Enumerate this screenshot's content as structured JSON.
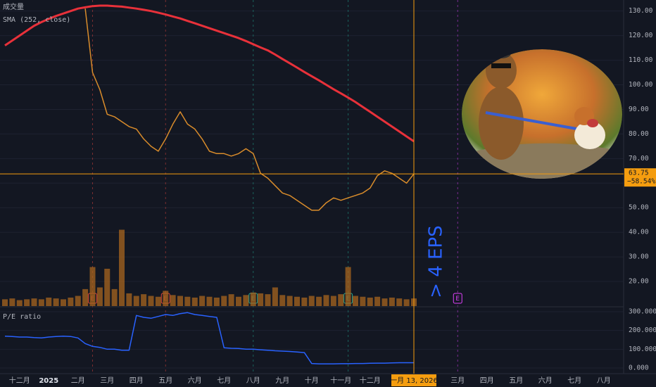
{
  "chart_data": [
    {
      "type": "line",
      "categories": [
        null,
        null,
        "十二月",
        null,
        null,
        null,
        "2025",
        null,
        null,
        null,
        "二月",
        null,
        null,
        null,
        "三月",
        null,
        null,
        null,
        "四月",
        null,
        null,
        null,
        "五月",
        null,
        null,
        null,
        "六月",
        null,
        null,
        null,
        "七月",
        null,
        null,
        null,
        "八月",
        null,
        null,
        null,
        "九月",
        null,
        null,
        null,
        "十月",
        null,
        null,
        null,
        "十一月",
        null,
        null,
        null,
        "十二月",
        null,
        null,
        null,
        null,
        null,
        "一月 13, 2026",
        null,
        null,
        null,
        null,
        null,
        "三月",
        null,
        null,
        null,
        "四月",
        null,
        null,
        null,
        "五月",
        null,
        null,
        null,
        "六月",
        null,
        null,
        null,
        "七月",
        null,
        null,
        null,
        "八月",
        null,
        null
      ],
      "series": [
        {
          "name": "成交量",
          "type": "bar",
          "axis": "y2",
          "color": "#a8661f",
          "values": [
            8,
            9,
            7,
            8,
            9,
            8,
            10,
            9,
            8,
            10,
            12,
            20,
            46,
            22,
            44,
            20,
            90,
            15,
            12,
            14,
            12,
            11,
            18,
            13,
            12,
            11,
            10,
            12,
            11,
            10,
            12,
            14,
            11,
            13,
            16,
            15,
            14,
            22,
            13,
            12,
            11,
            10,
            12,
            11,
            13,
            12,
            14,
            46,
            12,
            11,
            10,
            11,
            9,
            10,
            9,
            8,
            9,
            null,
            null,
            null,
            null,
            null,
            null,
            null,
            null,
            null,
            null,
            null,
            null,
            null,
            null,
            null,
            null,
            null,
            null,
            null,
            null,
            null,
            null,
            null,
            null,
            null,
            null,
            null,
            null
          ]
        },
        {
          "name": "SMA (252, close)",
          "type": "line",
          "color": "#e8313a",
          "values": [
            116,
            118,
            120,
            122,
            124,
            125.5,
            126.8,
            128,
            129,
            130,
            131,
            131.5,
            132,
            132.2,
            132.2,
            132,
            131.8,
            131.4,
            131,
            130.5,
            130,
            129.3,
            128.6,
            127.8,
            127,
            126,
            125,
            124,
            123,
            122,
            121,
            120,
            119,
            117.8,
            116.5,
            115.2,
            114,
            112.3,
            110.5,
            108.8,
            107,
            105.2,
            103.5,
            101.8,
            100,
            98.2,
            96.5,
            94.8,
            93,
            91,
            89,
            87,
            85,
            83,
            81,
            79,
            77,
            null,
            null,
            null,
            null,
            null,
            null,
            null,
            null,
            null,
            null,
            null,
            null,
            null,
            null,
            null,
            null,
            null,
            null,
            null,
            null,
            null,
            null,
            null,
            null,
            null,
            null,
            null,
            null
          ]
        },
        {
          "type": "line",
          "color": "#d98c2b",
          "values": [
            null,
            null,
            null,
            null,
            null,
            null,
            null,
            null,
            null,
            null,
            null,
            131,
            105,
            98,
            88,
            87,
            85,
            83,
            82,
            78,
            75,
            73,
            78,
            84,
            89,
            84,
            82,
            78,
            73,
            72,
            72,
            71,
            72,
            74,
            72,
            64,
            62,
            59,
            56,
            55,
            53,
            51,
            49,
            49,
            52,
            54,
            53,
            54,
            55,
            56,
            58,
            63,
            65,
            64,
            62,
            60,
            63.75,
            null,
            null,
            null,
            null,
            null,
            null,
            null,
            null,
            null,
            null,
            null,
            null,
            null,
            null,
            null,
            null,
            null,
            null,
            null,
            null,
            null,
            null,
            null,
            null,
            null,
            null,
            null,
            null
          ]
        }
      ],
      "ylim": [
        10,
        134.2
      ],
      "yticks": [
        {
          "value": 20,
          "label": "20.00"
        },
        {
          "value": 30,
          "label": "30.00"
        },
        {
          "value": 40,
          "label": "40.00"
        },
        {
          "value": 50,
          "label": "50.00"
        },
        {
          "value": 60,
          "label": "60.00"
        },
        {
          "value": 70,
          "label": "70.00"
        },
        {
          "value": 80,
          "label": "80.00"
        },
        {
          "value": 90,
          "label": "90.00"
        },
        {
          "value": 100,
          "label": "100.00"
        },
        {
          "value": 110,
          "label": "110.00"
        },
        {
          "value": 120,
          "label": "120.00"
        },
        {
          "value": 130,
          "label": "130.00"
        }
      ],
      "y2lim": [
        0,
        360
      ],
      "grid": true,
      "change": {
        "value": -58.54,
        "label": "−58.54%"
      },
      "annotations": [
        "> 4 EPS"
      ],
      "earnings": [
        "E",
        "E",
        "E",
        "E",
        "E"
      ]
    },
    {
      "type": "line",
      "title": "P/E ratio",
      "series": [
        {
          "type": "line",
          "color": "#2962ff",
          "values": [
            170,
            168,
            165,
            165,
            162,
            160,
            165,
            168,
            170,
            168,
            160,
            130,
            115,
            110,
            100,
            100,
            95,
            95,
            280,
            270,
            265,
            275,
            285,
            280,
            290,
            295,
            285,
            280,
            275,
            270,
            108,
            105,
            104,
            100,
            100,
            97,
            95,
            92,
            90,
            88,
            85,
            82,
            24,
            22,
            22,
            22,
            23,
            23,
            24,
            24,
            25,
            26,
            26,
            27,
            28,
            28,
            28,
            null,
            null,
            null,
            null,
            null,
            null,
            null,
            null,
            null,
            null,
            null,
            null,
            null,
            null,
            null,
            null,
            null,
            null,
            null,
            null,
            null,
            null,
            null,
            null,
            null,
            null,
            null,
            null
          ]
        }
      ],
      "ylim": [
        -30,
        322.5
      ],
      "yticks": [
        {
          "value": 0,
          "label": "0.000"
        },
        {
          "value": 100,
          "label": "100.000"
        },
        {
          "value": 200,
          "label": "200.000"
        },
        {
          "value": 300,
          "label": "300.000"
        }
      ],
      "grid": true
    }
  ]
}
